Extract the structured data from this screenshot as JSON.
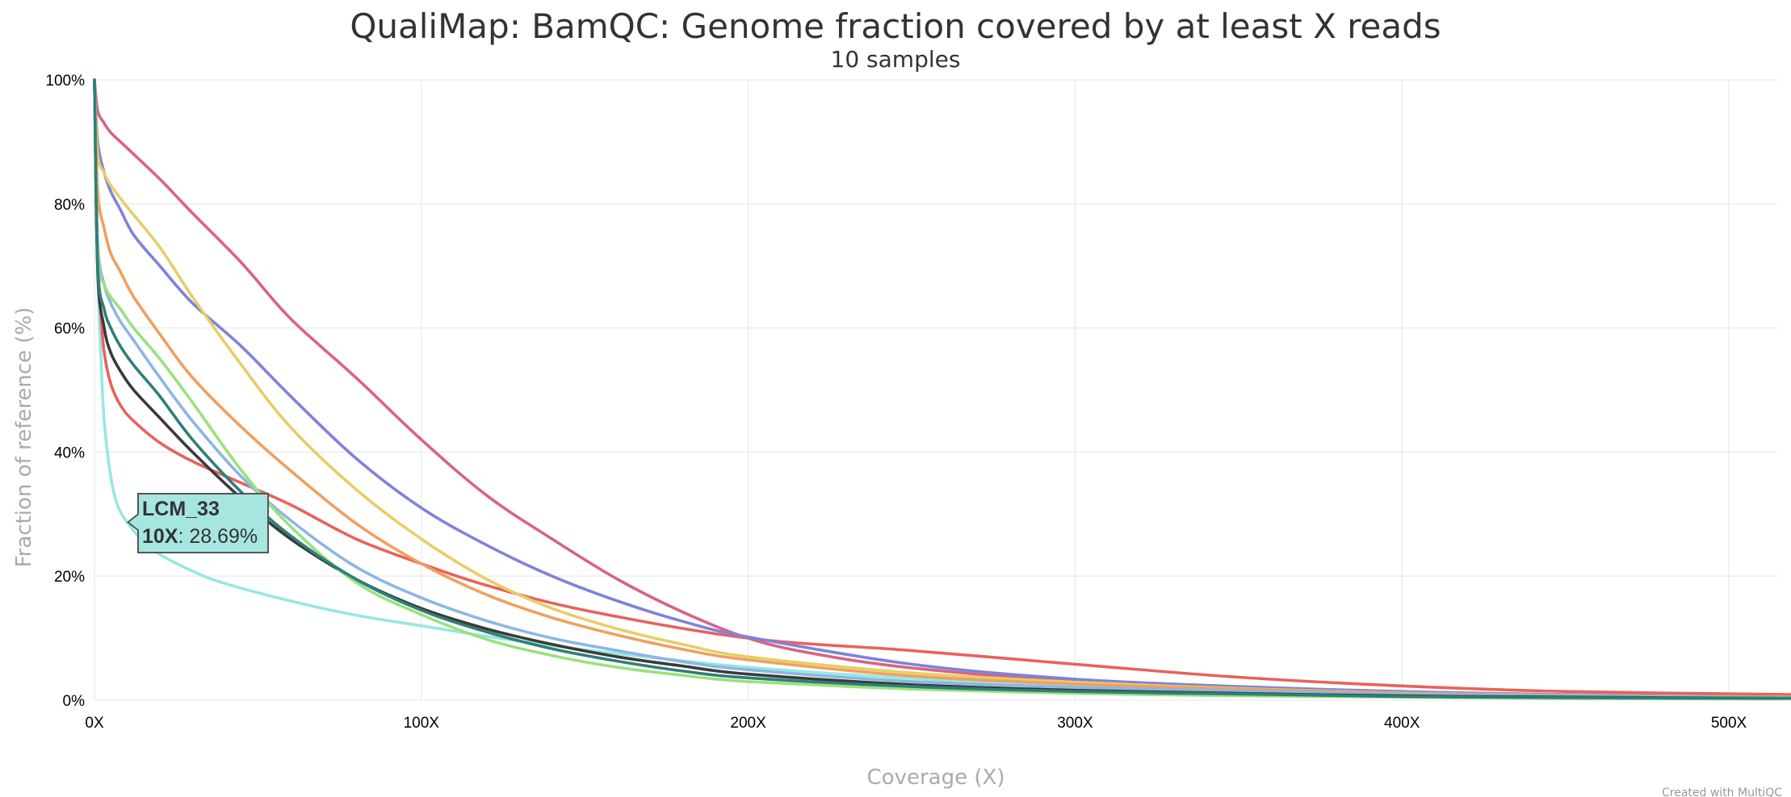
{
  "chart_data": {
    "type": "line",
    "title": "QualiMap: BamQC: Genome fraction covered by at least X reads",
    "subtitle": "10 samples",
    "xlabel": "Coverage (X)",
    "ylabel": "Fraction of reference (%)",
    "xlim": [
      0,
      520
    ],
    "ylim": [
      0,
      100
    ],
    "x_ticks": [
      "0X",
      "100X",
      "200X",
      "300X",
      "400X",
      "500X"
    ],
    "y_ticks": [
      "0%",
      "20%",
      "40%",
      "60%",
      "80%",
      "100%"
    ],
    "grid": true,
    "series": [
      {
        "name": "",
        "color": "#96e8e0",
        "x": [
          0,
          1,
          2,
          3,
          5,
          7,
          10,
          15,
          20,
          30,
          40,
          60,
          80,
          100,
          120,
          140,
          160,
          200,
          250,
          300,
          400,
          520
        ],
        "y": [
          100,
          70,
          55,
          45,
          36,
          31.5,
          28.69,
          25.5,
          23.5,
          20.8,
          18.8,
          16,
          13.7,
          12,
          10.3,
          8.8,
          7.5,
          5.3,
          3.5,
          2.2,
          1.2,
          0.6
        ]
      },
      {
        "name": "",
        "color": "#e8625a",
        "x": [
          0,
          1,
          2,
          3,
          5,
          8,
          12,
          20,
          30,
          45,
          60,
          80,
          100,
          120,
          150,
          200,
          250,
          300,
          350,
          400,
          450,
          520
        ],
        "y": [
          100,
          72,
          62,
          56,
          51,
          47.5,
          45,
          41.5,
          38.5,
          35,
          31.5,
          26,
          22,
          18.5,
          14.5,
          10,
          8,
          5.8,
          3.7,
          2.3,
          1.4,
          0.9
        ]
      },
      {
        "name": "",
        "color": "#d86482",
        "x": [
          0,
          1,
          3,
          5,
          10,
          20,
          30,
          45,
          60,
          80,
          100,
          120,
          140,
          160,
          180,
          200,
          220,
          250,
          300,
          350,
          400,
          450,
          520
        ],
        "y": [
          100,
          95,
          93,
          91.5,
          89,
          84,
          78.5,
          70.5,
          61.5,
          52,
          42,
          33,
          26,
          19.5,
          14.2,
          10,
          7.5,
          5.2,
          3,
          1.8,
          1.1,
          0.7,
          0.4
        ]
      },
      {
        "name": "",
        "color": "#7f82dc",
        "x": [
          0,
          1,
          3,
          5,
          8,
          12,
          20,
          30,
          45,
          60,
          80,
          100,
          120,
          140,
          160,
          180,
          200,
          250,
          300,
          350,
          400,
          450,
          520
        ],
        "y": [
          100,
          90,
          85,
          82,
          79,
          75,
          70,
          64,
          57,
          49,
          39,
          31,
          25,
          20,
          16,
          12.7,
          10.2,
          5.8,
          3.4,
          2.2,
          1.4,
          0.9,
          0.5
        ]
      },
      {
        "name": "",
        "color": "#e6ce66",
        "x": [
          0,
          1,
          3,
          5,
          10,
          20,
          30,
          45,
          60,
          80,
          100,
          120,
          140,
          160,
          180,
          200,
          250,
          300,
          350,
          400,
          450,
          520
        ],
        "y": [
          100,
          88,
          85,
          83,
          79.5,
          73,
          65,
          54,
          44,
          34,
          26,
          19.5,
          14.8,
          11.5,
          9,
          7,
          4.4,
          2.9,
          1.9,
          1.2,
          0.8,
          0.5
        ]
      },
      {
        "name": "",
        "color": "#efa05e",
        "x": [
          0,
          1,
          3,
          5,
          8,
          12,
          20,
          30,
          45,
          60,
          80,
          100,
          120,
          140,
          160,
          180,
          200,
          250,
          300,
          350,
          400,
          450,
          520
        ],
        "y": [
          100,
          82,
          76,
          72,
          69,
          65,
          59,
          52,
          44,
          37,
          28.5,
          22,
          17,
          13.3,
          10.5,
          8.2,
          6.5,
          3.9,
          2.6,
          1.8,
          1.2,
          0.8,
          0.5
        ]
      },
      {
        "name": "",
        "color": "#8cb6e4",
        "x": [
          0,
          1,
          3,
          5,
          8,
          12,
          20,
          30,
          45,
          60,
          80,
          100,
          120,
          140,
          160,
          180,
          200,
          250,
          300,
          350,
          400,
          450,
          520
        ],
        "y": [
          100,
          74,
          67,
          64,
          61,
          58,
          52,
          45,
          36,
          29,
          21.5,
          16.5,
          12.8,
          10,
          8,
          6.2,
          4.9,
          3,
          2.1,
          1.5,
          1,
          0.7,
          0.4
        ]
      },
      {
        "name": "",
        "color": "#3a3a3a",
        "x": [
          0,
          1,
          3,
          5,
          8,
          12,
          20,
          30,
          45,
          60,
          80,
          100,
          120,
          140,
          160,
          180,
          200,
          250,
          300,
          350,
          400,
          450,
          520
        ],
        "y": [
          100,
          69,
          60,
          56,
          53,
          50,
          45.5,
          40,
          32.5,
          26,
          19.5,
          14.8,
          11.5,
          9,
          7,
          5.5,
          4.2,
          2.5,
          1.6,
          1.1,
          0.7,
          0.5,
          0.3
        ]
      },
      {
        "name": "",
        "color": "#99e27e",
        "x": [
          0,
          1,
          3,
          5,
          8,
          12,
          20,
          30,
          45,
          60,
          80,
          100,
          120,
          140,
          160,
          180,
          200,
          250,
          300,
          350,
          400,
          450,
          520
        ],
        "y": [
          100,
          72,
          67,
          65,
          63,
          60,
          55,
          48,
          37,
          28,
          19,
          13.8,
          9.8,
          7.2,
          5.3,
          4,
          3,
          1.8,
          1.1,
          0.7,
          0.5,
          0.3,
          0.2
        ]
      },
      {
        "name": "",
        "color": "#2f7f78",
        "x": [
          0,
          1,
          3,
          5,
          8,
          12,
          20,
          30,
          45,
          60,
          80,
          100,
          120,
          140,
          160,
          180,
          200,
          250,
          300,
          350,
          400,
          450,
          520
        ],
        "y": [
          100,
          70,
          63,
          60,
          57,
          54,
          49,
          42,
          33.5,
          26.5,
          19.5,
          14.5,
          11,
          8.3,
          6.3,
          4.7,
          3.6,
          2.2,
          1.4,
          1,
          0.6,
          0.4,
          0.3
        ]
      }
    ],
    "tooltip": {
      "sample": "LCM_33",
      "x_label": "10X",
      "value": ": 28.69%",
      "series_index": 0,
      "x": 10,
      "y": 28.69
    }
  },
  "footer": {
    "credit": "Created with MultiQC"
  }
}
